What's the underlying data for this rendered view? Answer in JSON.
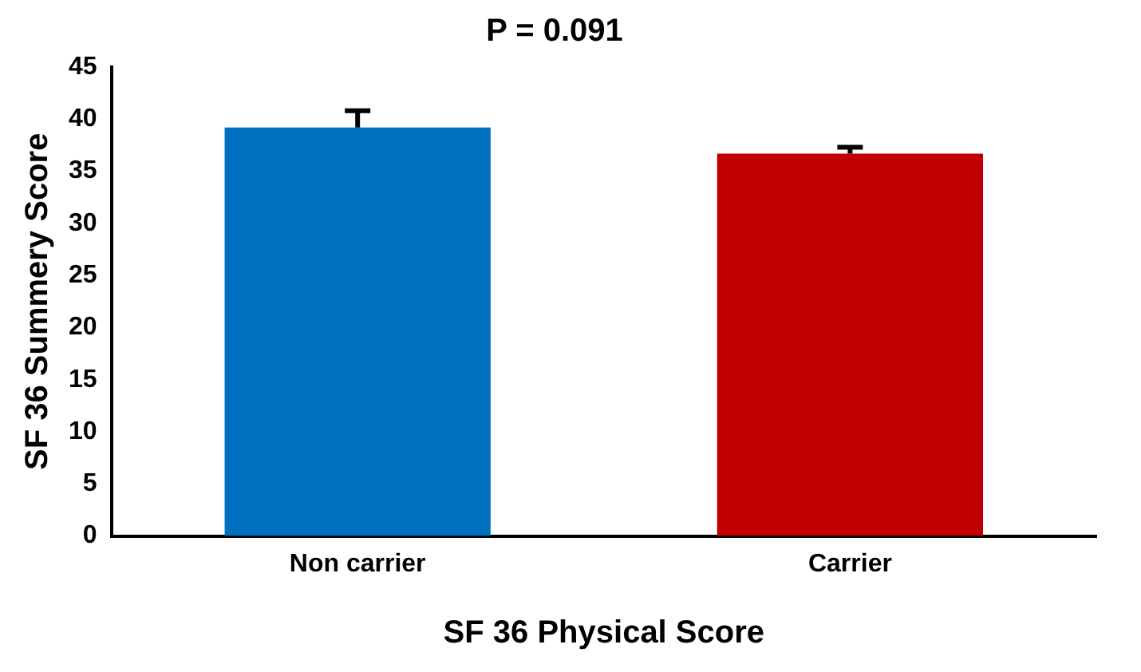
{
  "chart_data": {
    "type": "bar",
    "title": "P = 0.091",
    "xlabel": "SF 36 Physical Score",
    "ylabel": "SF 36 Summery Score",
    "categories": [
      "Non carrier",
      "Carrier"
    ],
    "values": [
      39.2,
      36.7
    ],
    "colors": [
      "#0070c0",
      "#c00000"
    ],
    "errors": [
      1.6,
      0.6
    ],
    "ylim": [
      0,
      45
    ],
    "yticks": [
      0,
      5,
      10,
      15,
      20,
      25,
      30,
      35,
      40,
      45
    ],
    "grid": false,
    "legend": false
  }
}
